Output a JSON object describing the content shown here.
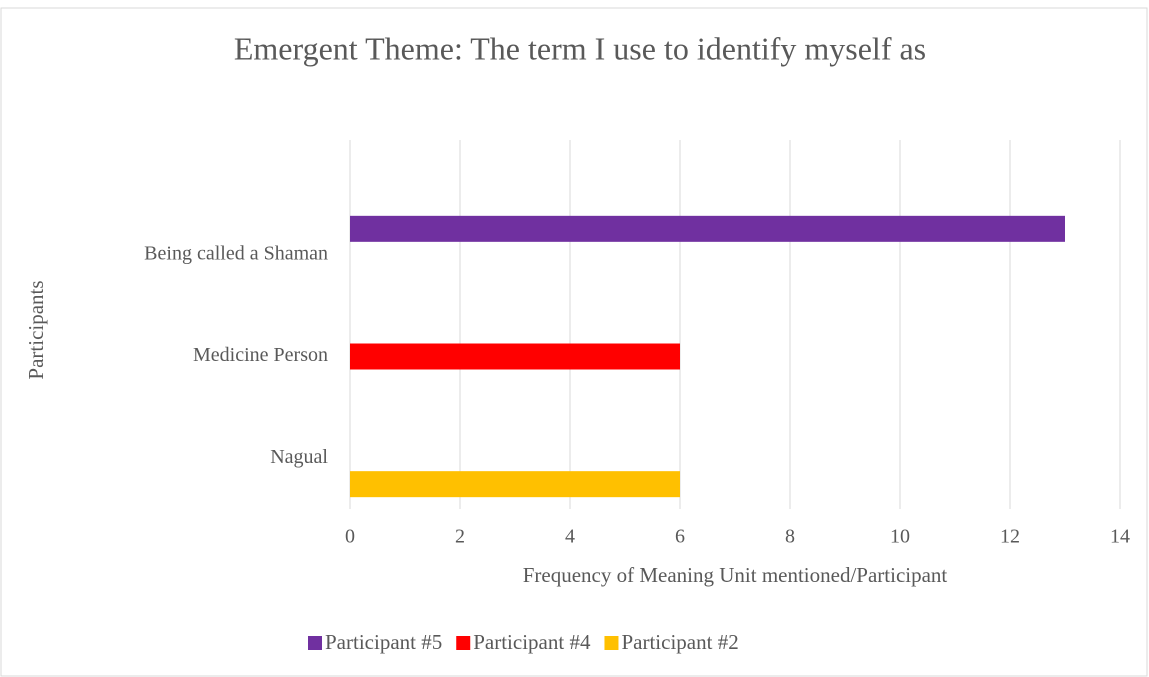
{
  "chart_data": {
    "type": "bar",
    "orientation": "horizontal",
    "title": "Emergent Theme: The term I use to identify myself as",
    "x_label": "Frequency of Meaning Unit mentioned/Participant",
    "y_label": "Participants",
    "categories": [
      "Nagual",
      "Medicine Person",
      "Being called a Shaman"
    ],
    "series": [
      {
        "name": "Participant #2",
        "color": "#ffc000",
        "values": [
          6,
          null,
          null
        ]
      },
      {
        "name": "Participant #4",
        "color": "#ff0000",
        "values": [
          null,
          6,
          null
        ]
      },
      {
        "name": "Participant #5",
        "color": "#7030a0",
        "values": [
          null,
          null,
          13
        ]
      }
    ],
    "legend_order": [
      2,
      1,
      0
    ],
    "xlim": [
      0,
      14
    ],
    "xticks": [
      0,
      2,
      4,
      6,
      8,
      10,
      12,
      14
    ],
    "grid": true,
    "legend": "bottom"
  }
}
